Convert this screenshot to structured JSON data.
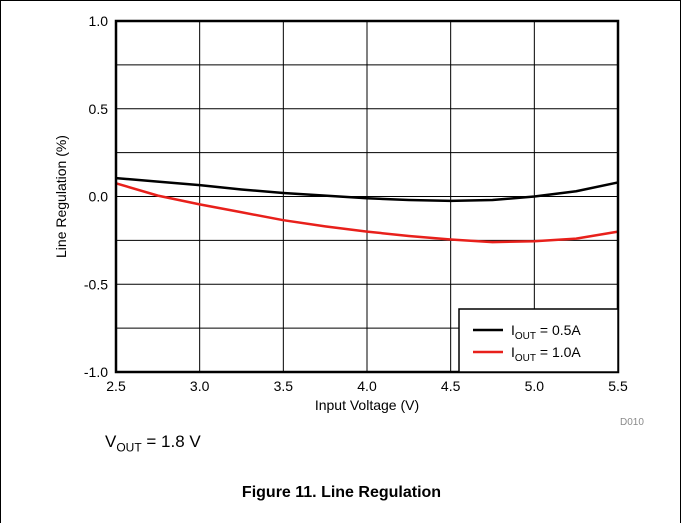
{
  "chart_data": {
    "type": "line",
    "title": "",
    "xlabel": "Input Voltage (V)",
    "ylabel": "Line Regulation (%)",
    "xlim": [
      2.5,
      5.5
    ],
    "ylim": [
      -1.0,
      1.0
    ],
    "x_ticks": [
      "2.5",
      "3.0",
      "3.5",
      "4.0",
      "4.5",
      "5.0",
      "5.5"
    ],
    "y_ticks": [
      "1.0",
      "0.5",
      "0.0",
      "-0.5",
      "-1.0"
    ],
    "grid": true,
    "legend_position": "bottom-right",
    "series": [
      {
        "name": "I_OUT = 0.5A",
        "legend_main": "I",
        "legend_sub": "OUT",
        "legend_tail": " = 0.5A",
        "color": "#000000",
        "x": [
          2.5,
          2.75,
          3.0,
          3.25,
          3.5,
          3.75,
          4.0,
          4.25,
          4.5,
          4.75,
          5.0,
          5.25,
          5.5
        ],
        "y": [
          0.105,
          0.085,
          0.065,
          0.04,
          0.02,
          0.005,
          -0.01,
          -0.02,
          -0.025,
          -0.02,
          0.0,
          0.03,
          0.08
        ]
      },
      {
        "name": "I_OUT = 1.0A",
        "legend_main": "I",
        "legend_sub": "OUT",
        "legend_tail": " = 1.0A",
        "color": "#e8201b",
        "x": [
          2.5,
          2.75,
          3.0,
          3.25,
          3.5,
          3.75,
          4.0,
          4.25,
          4.5,
          4.75,
          5.0,
          5.25,
          5.5
        ],
        "y": [
          0.075,
          0.005,
          -0.045,
          -0.09,
          -0.135,
          -0.17,
          -0.2,
          -0.225,
          -0.245,
          -0.26,
          -0.255,
          -0.24,
          -0.2
        ]
      }
    ]
  },
  "note": {
    "main": "V",
    "sub": "OUT",
    "tail": " = 1.8 V"
  },
  "figure_code": "D010",
  "caption": "Figure 11. Line Regulation"
}
